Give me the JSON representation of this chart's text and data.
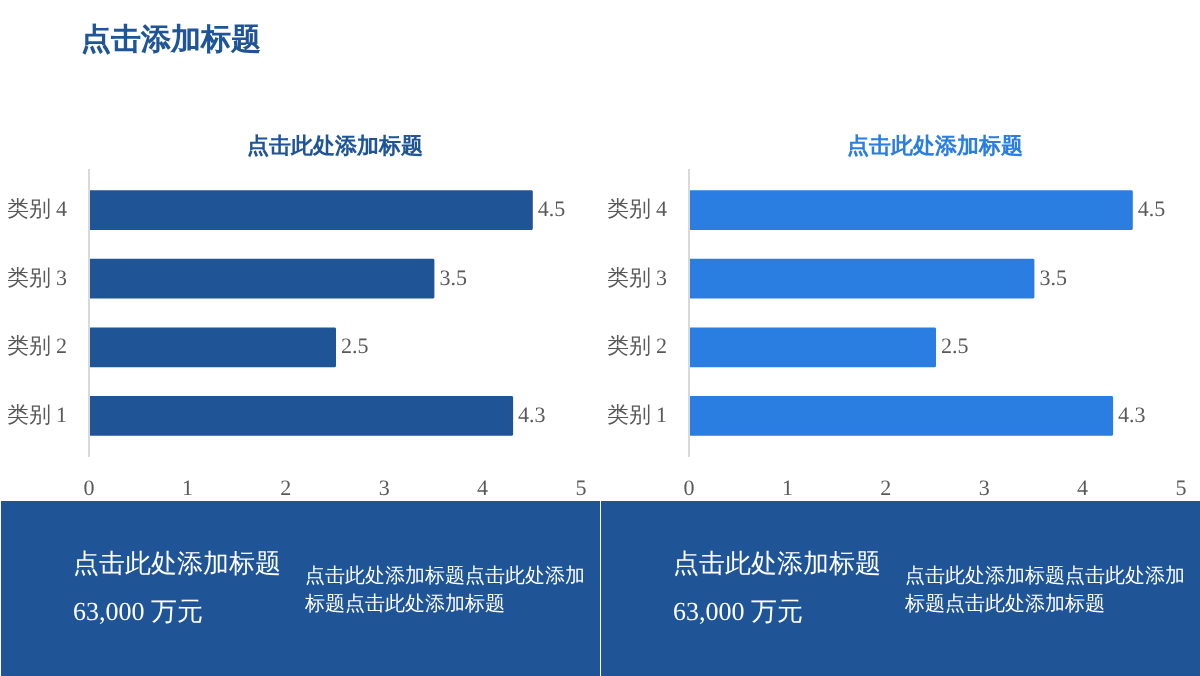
{
  "chart_data": [
    {
      "type": "other",
      "title": "点击添加标题"
    },
    {
      "type": "bar",
      "orientation": "horizontal",
      "title": "点击此处添加标题",
      "categories": [
        "类别 4",
        "类别 3",
        "类别 2",
        "类别 1"
      ],
      "values": [
        4.5,
        3.5,
        2.5,
        4.3
      ],
      "color": "#1f5597",
      "xlim": [
        0,
        5
      ],
      "xticks": [
        0,
        1,
        2,
        3,
        4,
        5
      ],
      "data_labels": true,
      "grid": false
    },
    {
      "type": "bar",
      "orientation": "horizontal",
      "title": "点击此处添加标题",
      "categories": [
        "类别 4",
        "类别 3",
        "类别 2",
        "类别 1"
      ],
      "values": [
        4.5,
        3.5,
        2.5,
        4.3
      ],
      "color": "#2a7de1",
      "xlim": [
        0,
        5
      ],
      "xticks": [
        0,
        1,
        2,
        3,
        4,
        5
      ],
      "data_labels": true,
      "grid": false
    },
    {
      "type": "other",
      "title": "点击此处添加标题",
      "annotations": [
        "63,000 万元",
        "点击此处添加标题点击此处添加标题点击此处添加标题"
      ]
    },
    {
      "type": "other",
      "title": "点击此处添加标题",
      "annotations": [
        "63,000 万元",
        "点击此处添加标题点击此处添加标题点击此处添加标题"
      ]
    }
  ]
}
